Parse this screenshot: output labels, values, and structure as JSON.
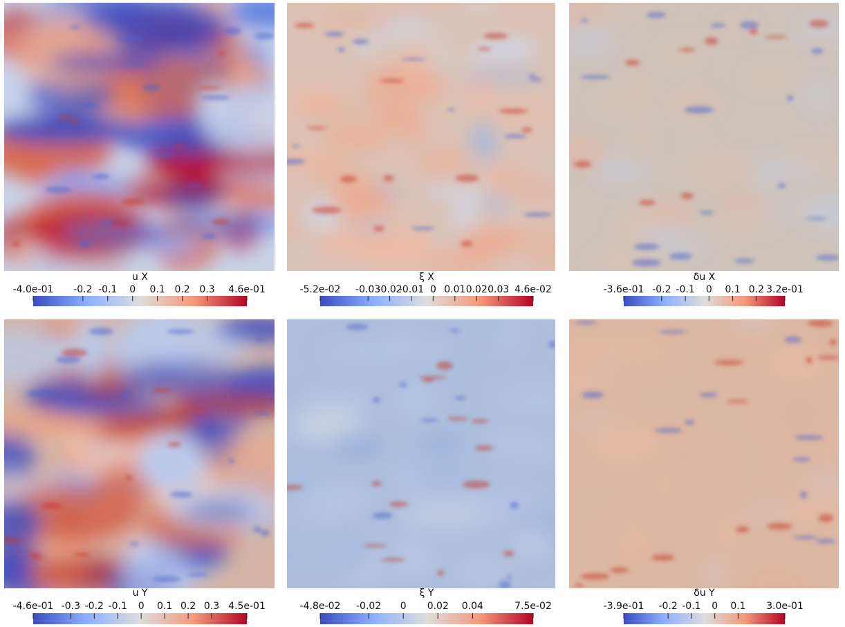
{
  "chart_data": [
    {
      "type": "colormap",
      "title": "u X",
      "clim": [
        -0.4,
        0.46
      ],
      "cticks": [
        {
          "value": -0.4,
          "label": "-4.0e-01"
        },
        -0.2,
        -0.1,
        0,
        0.1,
        0.2,
        0.3,
        {
          "value": 0.46,
          "label": "4.6e-01"
        }
      ]
    },
    {
      "type": "colormap",
      "title": "ξ X",
      "clim": [
        -0.052,
        0.046
      ],
      "cticks": [
        {
          "value": -0.052,
          "label": "-5.2e-02"
        },
        -0.03,
        -0.02,
        -0.01,
        0,
        0.01,
        0.02,
        0.03,
        {
          "value": 0.046,
          "label": "4.6e-02"
        }
      ]
    },
    {
      "type": "colormap",
      "title": "δu X",
      "clim": [
        -0.36,
        0.32
      ],
      "cticks": [
        {
          "value": -0.36,
          "label": "-3.6e-01"
        },
        -0.2,
        -0.1,
        0,
        0.1,
        0.2,
        {
          "value": 0.32,
          "label": "3.2e-01"
        }
      ]
    },
    {
      "type": "colormap",
      "title": "u Y",
      "clim": [
        -0.46,
        0.45
      ],
      "cticks": [
        {
          "value": -0.46,
          "label": "-4.6e-01"
        },
        -0.3,
        -0.2,
        -0.1,
        0,
        0.1,
        0.2,
        0.3,
        {
          "value": 0.45,
          "label": "4.5e-01"
        }
      ]
    },
    {
      "type": "colormap",
      "title": "ξ Y",
      "clim": [
        -0.048,
        0.075
      ],
      "cticks": [
        {
          "value": -0.048,
          "label": "-4.8e-02"
        },
        -0.02,
        0,
        0.02,
        0.04,
        {
          "value": 0.075,
          "label": "7.5e-02"
        }
      ]
    },
    {
      "type": "colormap",
      "title": "δu Y",
      "clim": [
        -0.39,
        0.3
      ],
      "cticks": [
        {
          "value": -0.39,
          "label": "-3.9e-01"
        },
        -0.2,
        -0.1,
        0,
        0.1,
        {
          "value": 0.3,
          "label": "3.0e-01"
        }
      ]
    }
  ]
}
